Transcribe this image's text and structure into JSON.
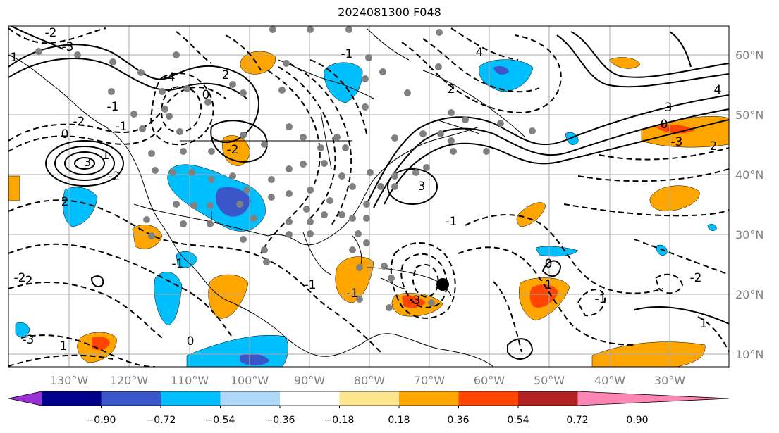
{
  "title": "2024081300 F048",
  "longitude_labels": [
    "130°W",
    "120°W",
    "110°W",
    "100°W",
    "90°W",
    "80°W",
    "70°W",
    "60°W",
    "50°W",
    "40°W",
    "30°W"
  ],
  "latitude_labels": [
    "60°N",
    "50°N",
    "40°N",
    "30°N",
    "20°N",
    "10°N"
  ],
  "colorbar": {
    "tick_labels": [
      "−0.90",
      "−0.72",
      "−0.54",
      "−0.36",
      "−0.18",
      "0.18",
      "0.36",
      "0.54",
      "0.72",
      "0.90"
    ],
    "colors": [
      "#9b30d6",
      "#00008b",
      "#3a56c8",
      "#00bfff",
      "#add8f7",
      "#ffffff",
      "#fde58e",
      "#ffa500",
      "#ff4500",
      "#b22222",
      "#ff85b5"
    ]
  },
  "contour_labels": [
    "-2",
    "-3",
    "-2",
    "0",
    "-1",
    "2",
    "3",
    "1",
    "-1",
    "-4",
    "-2",
    "0",
    "3",
    "2",
    "4",
    "-1",
    "-2",
    "1",
    "-3",
    "2",
    "1",
    "-2",
    "-1",
    "0",
    "-1",
    "-3",
    "-2",
    "-1",
    "1",
    "0",
    "-1",
    "1",
    "-1",
    "-2",
    "0",
    "3",
    "4",
    "-3",
    "2"
  ],
  "marker": {
    "name": "storm-center-marker",
    "color": "#000000"
  }
}
